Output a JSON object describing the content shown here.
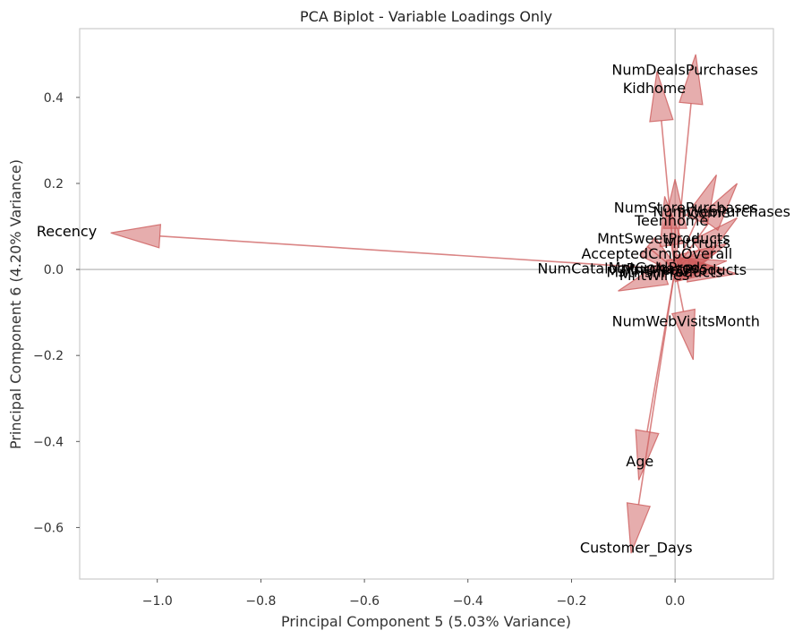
{
  "chart_data": {
    "type": "scatter",
    "subtype": "biplot-loadings",
    "title": "PCA Biplot - Variable Loadings Only",
    "xlabel": "Principal Component 5 (5.03% Variance)",
    "ylabel": "Principal Component 6 (4.20% Variance)",
    "xlim": [
      -1.15,
      0.19
    ],
    "ylim": [
      -0.72,
      0.56
    ],
    "xticks": [
      -1.0,
      -0.8,
      -0.6,
      -0.4,
      -0.2,
      0.0
    ],
    "xtick_labels": [
      "−1.0",
      "−0.8",
      "−0.6",
      "−0.4",
      "−0.2",
      "0.0"
    ],
    "yticks": [
      0.4,
      0.2,
      0.0,
      -0.2,
      -0.4,
      -0.6
    ],
    "ytick_labels": [
      "0.4",
      "0.2",
      "0.0",
      "−0.2",
      "−0.4",
      "−0.6"
    ],
    "grid": false,
    "reference_lines": "x=0 and y=0",
    "arrow_color": "#cd5c5c",
    "loadings": [
      {
        "name": "Recency",
        "x": -1.09,
        "y": 0.085
      },
      {
        "name": "NumDealsPurchases",
        "x": 0.04,
        "y": 0.5
      },
      {
        "name": "Kidhome",
        "x": -0.035,
        "y": 0.46
      },
      {
        "name": "Age",
        "x": -0.07,
        "y": -0.49
      },
      {
        "name": "Customer_Days",
        "x": -0.085,
        "y": -0.66
      },
      {
        "name": "NumWebVisitsMonth",
        "x": 0.035,
        "y": -0.21
      },
      {
        "name": "NumStorePurchases",
        "x": 0.08,
        "y": 0.22
      },
      {
        "name": "NumWebPurchases",
        "x": 0.12,
        "y": 0.2
      },
      {
        "name": "Income",
        "x": 0.0,
        "y": 0.21
      },
      {
        "name": "Teenhome",
        "x": -0.02,
        "y": 0.17
      },
      {
        "name": "MntSweetProducts",
        "x": 0.12,
        "y": 0.12
      },
      {
        "name": "MntFruits",
        "x": 0.1,
        "y": 0.06
      },
      {
        "name": "AcceptedCmpOverall",
        "x": 0.08,
        "y": 0.04
      },
      {
        "name": "NumCatalogPurchases",
        "x": -0.11,
        "y": -0.05
      },
      {
        "name": "MntMeatProducts",
        "x": 0.12,
        "y": -0.01
      },
      {
        "name": "MntGoldProds",
        "x": 0.1,
        "y": 0.0
      },
      {
        "name": "MntFishProducts",
        "x": 0.1,
        "y": 0.02
      },
      {
        "name": "MntWines",
        "x": 0.02,
        "y": -0.02
      }
    ],
    "labels": [
      {
        "text": "Recency",
        "x": -1.175,
        "y": 0.09
      },
      {
        "text": "NumDealsPurchases",
        "x": 0.019,
        "y": 0.465
      },
      {
        "text": "Kidhome",
        "x": -0.04,
        "y": 0.423
      },
      {
        "text": "Age",
        "x": -0.068,
        "y": -0.445
      },
      {
        "text": "Customer_Days",
        "x": -0.075,
        "y": -0.646
      },
      {
        "text": "NumWebVisitsMonth",
        "x": 0.021,
        "y": -0.12
      },
      {
        "text": "NumStorePurchases",
        "x": 0.021,
        "y": 0.145
      },
      {
        "text": "NumWebPurchases",
        "x": 0.09,
        "y": 0.135
      },
      {
        "text": "Income",
        "x": 0.055,
        "y": 0.133
      },
      {
        "text": "Teenhome",
        "x": -0.007,
        "y": 0.115
      },
      {
        "text": "MntSweetProducts",
        "x": -0.022,
        "y": 0.073
      },
      {
        "text": "MntFruits",
        "x": 0.043,
        "y": 0.063
      },
      {
        "text": "AcceptedCmpOverall",
        "x": -0.035,
        "y": 0.038
      },
      {
        "text": "NumCatalogPurchases",
        "x": -0.11,
        "y": 0.003
      },
      {
        "text": "MntGoldProds",
        "x": -0.033,
        "y": 0.005
      },
      {
        "text": "MntMeatProducts",
        "x": 0.018,
        "y": 0.0
      },
      {
        "text": "MntFishProducts",
        "x": -0.02,
        "y": -0.005
      },
      {
        "text": "MntWines",
        "x": -0.04,
        "y": -0.012
      }
    ]
  }
}
